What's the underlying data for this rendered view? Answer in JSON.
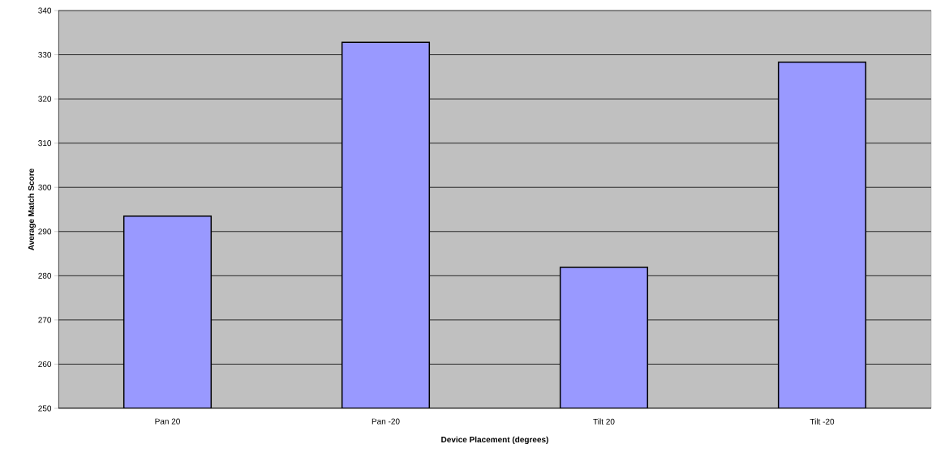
{
  "chart_data": {
    "type": "bar",
    "xlabel": "Device Placement (degrees)",
    "ylabel": "Average Match Score",
    "categories": [
      "Pan 20",
      "Pan -20",
      "Tilt 20",
      "Tilt -20"
    ],
    "values": [
      293.5,
      332.8,
      281.9,
      328.3
    ],
    "color": "#9999ff",
    "ylim": [
      250,
      340
    ],
    "yticks": [
      250,
      260,
      270,
      280,
      290,
      300,
      310,
      320,
      330,
      340
    ],
    "grid": "y"
  }
}
